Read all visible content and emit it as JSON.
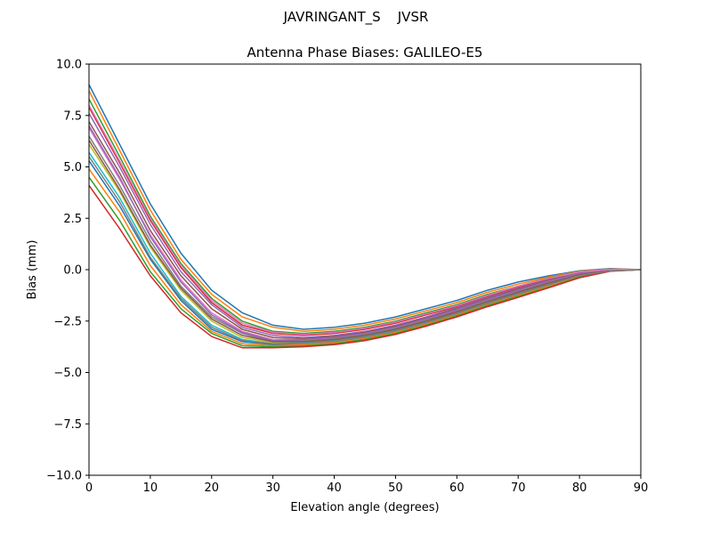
{
  "chart_data": {
    "type": "line",
    "suptitle": "JAVRINGANT_S    JVSR",
    "title": "Antenna Phase Biases: GALILEO-E5",
    "xlabel": "Elevation angle (degrees)",
    "ylabel": "Bias (mm)",
    "xlim": [
      0,
      90
    ],
    "ylim": [
      -10,
      10
    ],
    "x_ticks": [
      "0",
      "10",
      "20",
      "30",
      "40",
      "50",
      "60",
      "70",
      "80",
      "90"
    ],
    "y_ticks": [
      "10.0",
      "7.5",
      "5.0",
      "2.5",
      "0.0",
      "−2.5",
      "−5.0",
      "−7.5",
      "−10.0"
    ],
    "grid": false,
    "legend": "none",
    "x": [
      0,
      5,
      10,
      15,
      20,
      25,
      30,
      35,
      40,
      45,
      50,
      55,
      60,
      65,
      70,
      75,
      80,
      85,
      90
    ],
    "series": [
      {
        "values": [
          9.0,
          6.1,
          3.2,
          0.8,
          -1.0,
          -2.1,
          -2.7,
          -2.9,
          -2.8,
          -2.6,
          -2.3,
          -1.9,
          -1.5,
          -1.0,
          -0.6,
          -0.3,
          -0.05,
          0.05,
          0.0
        ]
      },
      {
        "values": [
          8.7,
          5.8,
          2.9,
          0.5,
          -1.2,
          -2.3,
          -2.8,
          -3.0,
          -2.9,
          -2.7,
          -2.4,
          -2.0,
          -1.6,
          -1.1,
          -0.7,
          -0.35,
          -0.08,
          0.04,
          0.0
        ]
      },
      {
        "values": [
          8.3,
          5.5,
          2.6,
          0.3,
          -1.4,
          -2.5,
          -3.0,
          -3.1,
          -3.0,
          -2.8,
          -2.5,
          -2.1,
          -1.7,
          -1.2,
          -0.8,
          -0.4,
          -0.1,
          0.03,
          0.0
        ]
      },
      {
        "values": [
          7.9,
          5.2,
          2.4,
          0.1,
          -1.6,
          -2.7,
          -3.1,
          -3.2,
          -3.1,
          -2.9,
          -2.6,
          -2.2,
          -1.8,
          -1.3,
          -0.85,
          -0.45,
          -0.12,
          0.02,
          0.0
        ]
      },
      {
        "values": [
          7.6,
          5.0,
          2.2,
          -0.1,
          -1.7,
          -2.8,
          -3.2,
          -3.3,
          -3.2,
          -3.0,
          -2.7,
          -2.3,
          -1.85,
          -1.35,
          -0.9,
          -0.5,
          -0.15,
          0.01,
          0.0
        ]
      },
      {
        "values": [
          7.2,
          4.7,
          1.9,
          -0.3,
          -1.9,
          -2.9,
          -3.3,
          -3.35,
          -3.25,
          -3.05,
          -2.75,
          -2.35,
          -1.9,
          -1.4,
          -0.95,
          -0.52,
          -0.17,
          0.0,
          0.0
        ]
      },
      {
        "values": [
          6.9,
          4.4,
          1.7,
          -0.5,
          -2.1,
          -3.0,
          -3.4,
          -3.4,
          -3.3,
          -3.1,
          -2.8,
          -2.4,
          -1.95,
          -1.45,
          -1.0,
          -0.55,
          -0.2,
          -0.01,
          0.0
        ]
      },
      {
        "values": [
          6.5,
          4.1,
          1.4,
          -0.8,
          -2.3,
          -3.1,
          -3.5,
          -3.45,
          -3.35,
          -3.15,
          -2.85,
          -2.45,
          -2.0,
          -1.5,
          -1.05,
          -0.6,
          -0.22,
          -0.02,
          0.0
        ]
      },
      {
        "values": [
          6.1,
          3.8,
          1.1,
          -1.0,
          -2.5,
          -3.3,
          -3.55,
          -3.5,
          -3.4,
          -3.2,
          -2.9,
          -2.5,
          -2.05,
          -1.55,
          -1.1,
          -0.65,
          -0.25,
          -0.03,
          0.0
        ]
      },
      {
        "values": [
          5.7,
          3.5,
          0.8,
          -1.3,
          -2.7,
          -3.4,
          -3.6,
          -3.55,
          -3.45,
          -3.25,
          -2.95,
          -2.55,
          -2.1,
          -1.6,
          -1.15,
          -0.7,
          -0.28,
          -0.04,
          0.0
        ]
      },
      {
        "values": [
          5.3,
          3.1,
          0.5,
          -1.5,
          -2.9,
          -3.5,
          -3.65,
          -3.6,
          -3.5,
          -3.3,
          -3.0,
          -2.6,
          -2.15,
          -1.65,
          -1.2,
          -0.75,
          -0.3,
          -0.05,
          0.0
        ]
      },
      {
        "values": [
          4.9,
          2.8,
          0.2,
          -1.7,
          -3.0,
          -3.6,
          -3.7,
          -3.65,
          -3.55,
          -3.35,
          -3.05,
          -2.65,
          -2.2,
          -1.7,
          -1.25,
          -0.8,
          -0.33,
          -0.06,
          0.0
        ]
      },
      {
        "values": [
          4.5,
          2.4,
          -0.1,
          -1.9,
          -3.1,
          -3.7,
          -3.75,
          -3.7,
          -3.6,
          -3.4,
          -3.1,
          -2.7,
          -2.25,
          -1.75,
          -1.3,
          -0.85,
          -0.36,
          -0.07,
          0.0
        ]
      },
      {
        "values": [
          4.1,
          2.0,
          -0.3,
          -2.1,
          -3.25,
          -3.8,
          -3.8,
          -3.75,
          -3.65,
          -3.45,
          -3.15,
          -2.75,
          -2.3,
          -1.8,
          -1.35,
          -0.88,
          -0.4,
          -0.08,
          0.0
        ]
      },
      {
        "values": [
          7.0,
          4.5,
          1.6,
          -0.6,
          -2.2,
          -3.05,
          -3.45,
          -3.4,
          -3.3,
          -3.1,
          -2.8,
          -2.4,
          -1.95,
          -1.45,
          -1.0,
          -0.55,
          -0.2,
          -0.01,
          0.0
        ]
      },
      {
        "values": [
          6.3,
          3.9,
          1.2,
          -0.9,
          -2.4,
          -3.2,
          -3.5,
          -3.5,
          -3.4,
          -3.2,
          -2.9,
          -2.5,
          -2.05,
          -1.55,
          -1.1,
          -0.65,
          -0.25,
          -0.03,
          0.0
        ]
      },
      {
        "values": [
          8.0,
          5.3,
          2.5,
          0.2,
          -1.5,
          -2.6,
          -3.05,
          -3.15,
          -3.05,
          -2.85,
          -2.55,
          -2.15,
          -1.75,
          -1.25,
          -0.8,
          -0.42,
          -0.11,
          0.02,
          0.0
        ]
      },
      {
        "values": [
          5.5,
          3.3,
          0.6,
          -1.4,
          -2.8,
          -3.45,
          -3.6,
          -3.58,
          -3.48,
          -3.28,
          -2.98,
          -2.58,
          -2.12,
          -1.62,
          -1.18,
          -0.72,
          -0.29,
          -0.05,
          0.0
        ]
      }
    ]
  },
  "palette": [
    "#1f77b4",
    "#ff7f0e",
    "#2ca02c",
    "#d62728",
    "#9467bd",
    "#8c564b",
    "#e377c2",
    "#7f7f7f",
    "#bcbd22",
    "#17becf"
  ]
}
